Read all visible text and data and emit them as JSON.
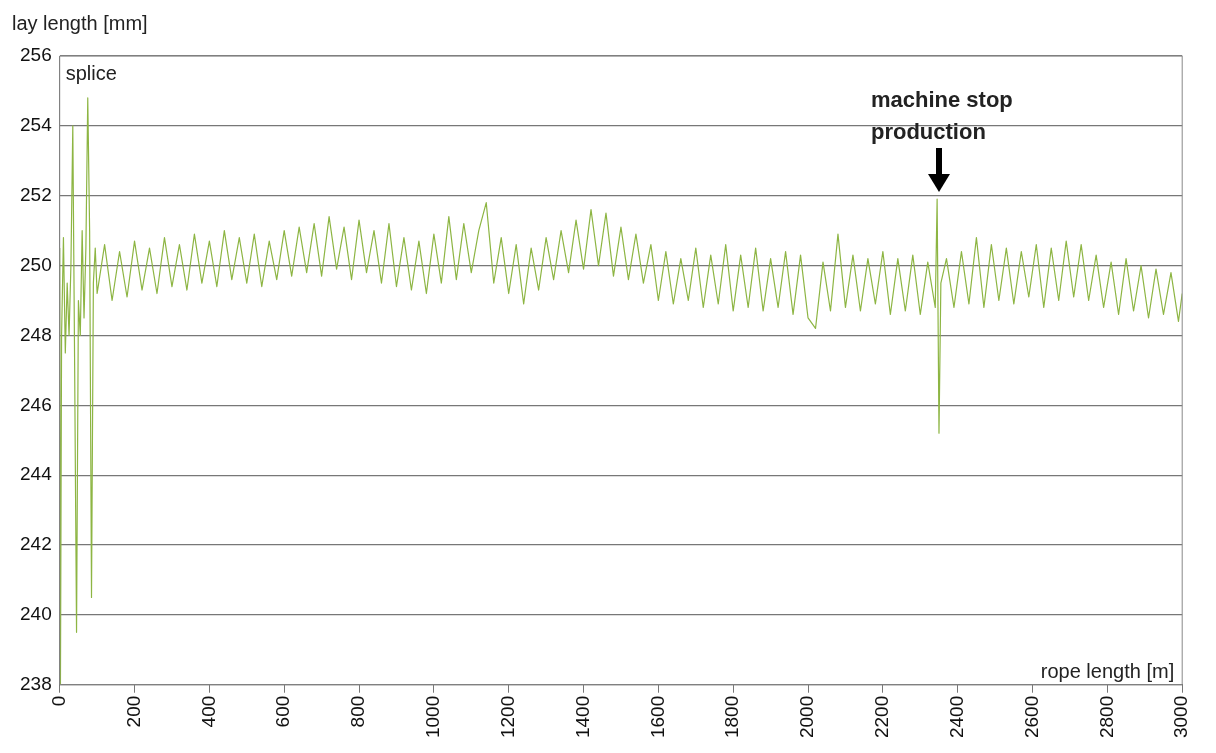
{
  "chart_data": {
    "type": "line",
    "xlabel": "rope length [m]",
    "ylabel": "lay length [mm]",
    "xlim": [
      0,
      3000
    ],
    "xticks": [
      0,
      200,
      400,
      600,
      800,
      1000,
      1200,
      1400,
      1600,
      1800,
      2000,
      2200,
      2400,
      2600,
      2800,
      3000
    ],
    "ylim": [
      238,
      256
    ],
    "yticks": [
      238,
      240,
      242,
      244,
      246,
      248,
      250,
      252,
      254,
      256
    ],
    "grid": "y",
    "legend": false,
    "marker": "none",
    "line_style": "solid",
    "annotations": [
      "splice",
      {
        "text": "machine stop\nproduction",
        "x": 2350,
        "y": 252
      }
    ],
    "series": [
      {
        "color": "#8db543",
        "x": [
          0,
          2,
          5,
          10,
          15,
          20,
          25,
          30,
          35,
          40,
          45,
          50,
          55,
          60,
          65,
          70,
          75,
          80,
          85,
          90,
          95,
          100,
          120,
          140,
          160,
          180,
          200,
          220,
          240,
          260,
          280,
          300,
          320,
          340,
          360,
          380,
          400,
          420,
          440,
          460,
          480,
          500,
          520,
          540,
          560,
          580,
          600,
          620,
          640,
          660,
          680,
          700,
          720,
          740,
          760,
          780,
          800,
          820,
          840,
          860,
          880,
          900,
          920,
          940,
          960,
          980,
          1000,
          1020,
          1040,
          1060,
          1080,
          1100,
          1120,
          1140,
          1160,
          1180,
          1200,
          1220,
          1240,
          1260,
          1280,
          1300,
          1320,
          1340,
          1360,
          1380,
          1400,
          1420,
          1440,
          1460,
          1480,
          1500,
          1520,
          1540,
          1560,
          1580,
          1600,
          1620,
          1640,
          1660,
          1680,
          1700,
          1720,
          1740,
          1760,
          1780,
          1800,
          1820,
          1840,
          1860,
          1880,
          1900,
          1920,
          1940,
          1960,
          1980,
          2000,
          2020,
          2040,
          2060,
          2080,
          2100,
          2120,
          2140,
          2160,
          2180,
          2200,
          2220,
          2240,
          2260,
          2280,
          2300,
          2320,
          2340,
          2345,
          2350,
          2355,
          2370,
          2390,
          2410,
          2430,
          2450,
          2470,
          2490,
          2510,
          2530,
          2550,
          2570,
          2590,
          2610,
          2630,
          2650,
          2670,
          2690,
          2710,
          2730,
          2750,
          2770,
          2790,
          2810,
          2830,
          2850,
          2870,
          2890,
          2910,
          2930,
          2950,
          2970,
          2990,
          3000
        ],
        "values": [
          250.5,
          238,
          248,
          250.8,
          247.5,
          249.5,
          248,
          250,
          254,
          247,
          239.5,
          249,
          248,
          251,
          248.5,
          250.5,
          254.8,
          251,
          240.5,
          249.5,
          250.5,
          249.2,
          250.6,
          249.0,
          250.4,
          249.1,
          250.7,
          249.3,
          250.5,
          249.2,
          250.8,
          249.4,
          250.6,
          249.3,
          250.9,
          249.5,
          250.7,
          249.4,
          251.0,
          249.6,
          250.8,
          249.5,
          250.9,
          249.4,
          250.7,
          249.6,
          251.0,
          249.7,
          251.1,
          249.8,
          251.2,
          249.7,
          251.4,
          249.9,
          251.1,
          249.6,
          251.3,
          249.8,
          251.0,
          249.5,
          251.2,
          249.4,
          250.8,
          249.3,
          250.7,
          249.2,
          250.9,
          249.5,
          251.4,
          249.6,
          251.2,
          249.8,
          251.0,
          251.8,
          249.5,
          250.8,
          249.2,
          250.6,
          248.9,
          250.5,
          249.3,
          250.8,
          249.6,
          251.0,
          249.8,
          251.3,
          249.9,
          251.6,
          250.0,
          251.5,
          249.7,
          251.1,
          249.6,
          250.9,
          249.5,
          250.6,
          249.0,
          250.4,
          248.9,
          250.2,
          249.0,
          250.5,
          248.8,
          250.3,
          248.9,
          250.6,
          248.7,
          250.3,
          248.8,
          250.5,
          248.7,
          250.2,
          248.8,
          250.4,
          248.6,
          250.3,
          248.5,
          248.2,
          250.1,
          248.7,
          250.9,
          248.8,
          250.3,
          248.7,
          250.2,
          248.9,
          250.4,
          248.6,
          250.2,
          248.7,
          250.3,
          248.6,
          250.1,
          248.8,
          251.9,
          245.2,
          249.5,
          250.2,
          248.8,
          250.4,
          248.9,
          250.8,
          248.8,
          250.6,
          249.0,
          250.5,
          248.9,
          250.4,
          249.1,
          250.6,
          248.8,
          250.5,
          249.0,
          250.7,
          249.1,
          250.6,
          249.0,
          250.3,
          248.8,
          250.1,
          248.6,
          250.2,
          248.7,
          250.0,
          248.5,
          249.9,
          248.6,
          249.8,
          248.4,
          249.2
        ]
      }
    ]
  }
}
